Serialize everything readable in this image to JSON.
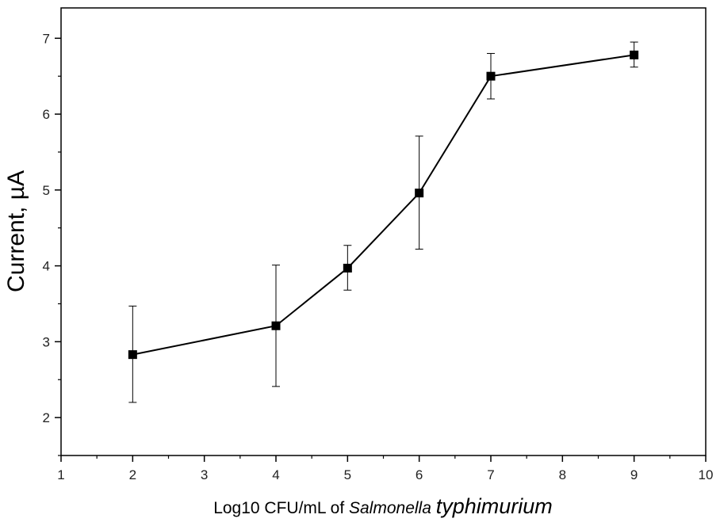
{
  "chart_data": {
    "type": "line",
    "title": "",
    "xlabel": {
      "prefix": "Log10 CFU/mL of ",
      "genus": "Salmonella",
      "species": "typhimurium"
    },
    "ylabel": "Current, µA",
    "xlim": [
      1,
      10
    ],
    "ylim": [
      1.5,
      7.4
    ],
    "xticks": [
      1,
      2,
      3,
      4,
      5,
      6,
      7,
      8,
      9,
      10
    ],
    "yticks": [
      2,
      3,
      4,
      5,
      6,
      7
    ],
    "grid": false,
    "legend": "none",
    "marker": "square",
    "color": "#000000",
    "series": [
      {
        "x": [
          2,
          4,
          5,
          6,
          7,
          9
        ],
        "y": [
          2.83,
          3.21,
          3.97,
          4.96,
          6.5,
          6.78
        ],
        "err_low": [
          2.2,
          2.41,
          3.68,
          4.22,
          6.2,
          6.62
        ],
        "err_high": [
          3.47,
          4.01,
          4.27,
          5.71,
          6.8,
          6.95
        ]
      }
    ]
  }
}
